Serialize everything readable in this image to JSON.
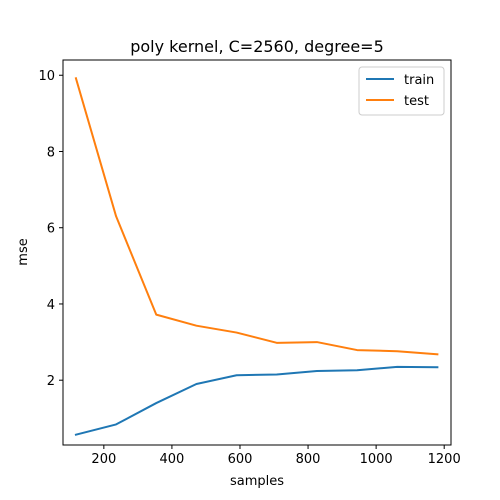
{
  "chart_data": {
    "type": "line",
    "title": "poly kernel, C=2560, degree=5",
    "xlabel": "samples",
    "ylabel": "mse",
    "xlim": [
      80,
      1220
    ],
    "ylim": [
      0.3,
      10.4
    ],
    "xticks": [
      200,
      400,
      600,
      800,
      1000,
      1200
    ],
    "yticks": [
      2,
      4,
      6,
      8,
      10
    ],
    "grid": false,
    "legend_position": "top-right",
    "x": [
      118,
      236,
      354,
      472,
      590,
      708,
      826,
      944,
      1062,
      1180
    ],
    "series": [
      {
        "name": "train",
        "color": "#1f77b4",
        "values": [
          0.57,
          0.84,
          1.4,
          1.9,
          2.13,
          2.15,
          2.24,
          2.26,
          2.35,
          2.34
        ]
      },
      {
        "name": "test",
        "color": "#ff7f0e",
        "values": [
          9.92,
          6.3,
          3.72,
          3.43,
          3.25,
          2.98,
          3.0,
          2.79,
          2.76,
          2.68
        ]
      }
    ]
  }
}
